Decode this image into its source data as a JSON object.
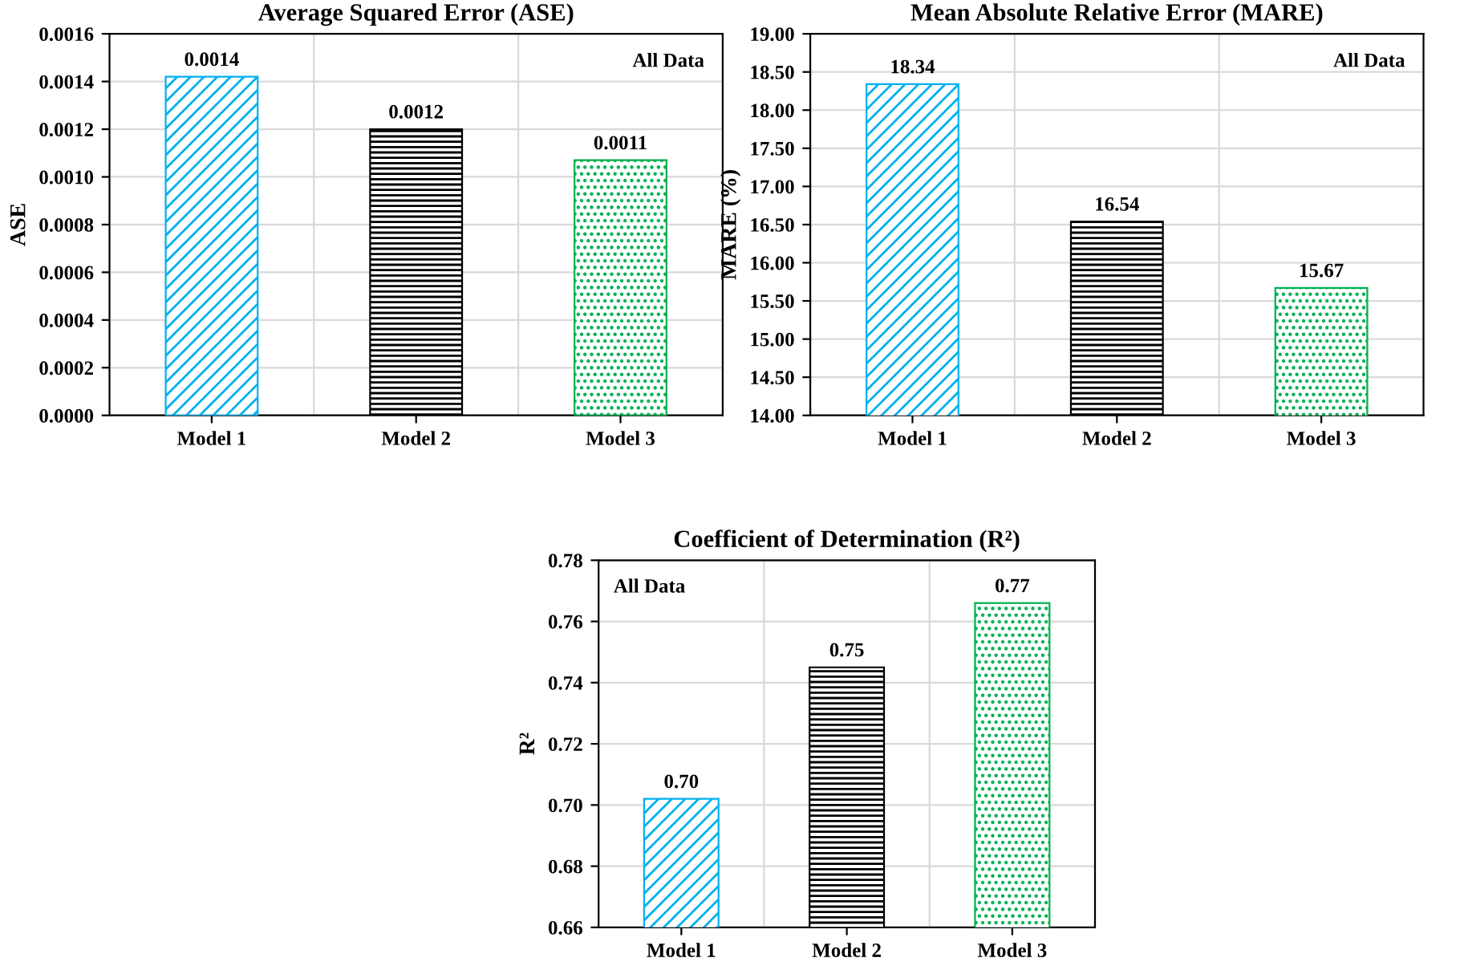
{
  "chart_data": [
    {
      "type": "bar",
      "title": "Average Squared Error (ASE)",
      "ylabel": "ASE",
      "categories": [
        "Model 1",
        "Model 2",
        "Model 3"
      ],
      "values": [
        0.00142,
        0.0012,
        0.00107
      ],
      "colors": [
        "#00b0f0",
        "#000000",
        "#00b050"
      ],
      "value_labels": [
        "0.0014",
        "0.0012",
        "0.0011"
      ],
      "ylim": [
        0,
        0.0016
      ],
      "yticks": [
        {
          "value": 0,
          "label": "0.0000"
        },
        {
          "value": 0.0002,
          "label": "0.0002"
        },
        {
          "value": 0.0004,
          "label": "0.0004"
        },
        {
          "value": 0.0006,
          "label": "0.0006"
        },
        {
          "value": 0.0008,
          "label": "0.0008"
        },
        {
          "value": 0.001,
          "label": "0.0010"
        },
        {
          "value": 0.0012,
          "label": "0.0012"
        },
        {
          "value": 0.0014,
          "label": "0.0014"
        },
        {
          "value": 0.0016,
          "label": "0.0016"
        }
      ],
      "grid": true,
      "annotations": [
        "All Data"
      ]
    },
    {
      "type": "bar",
      "title": "Mean Absolute Relative Error (MARE)",
      "ylabel": "MARE (%)",
      "categories": [
        "Model 1",
        "Model 2",
        "Model 3"
      ],
      "values": [
        18.34,
        16.54,
        15.67
      ],
      "colors": [
        "#00b0f0",
        "#000000",
        "#00b050"
      ],
      "data_labels": true,
      "ylim": [
        14,
        19
      ],
      "yticks": [
        {
          "value": 14,
          "label": "14.00"
        },
        {
          "value": 14.5,
          "label": "14.50"
        },
        {
          "value": 15,
          "label": "15.00"
        },
        {
          "value": 15.5,
          "label": "15.50"
        },
        {
          "value": 16,
          "label": "16.00"
        },
        {
          "value": 16.5,
          "label": "16.50"
        },
        {
          "value": 17,
          "label": "17.00"
        },
        {
          "value": 17.5,
          "label": "17.50"
        },
        {
          "value": 18,
          "label": "18.00"
        },
        {
          "value": 18.5,
          "label": "18.50"
        },
        {
          "value": 19,
          "label": "19.00"
        }
      ],
      "grid": true,
      "annotations": [
        "All Data"
      ]
    },
    {
      "type": "bar",
      "title": "Coefficient of Determination (R²)",
      "ylabel": "R²",
      "categories": [
        "Model 1",
        "Model 2",
        "Model 3"
      ],
      "values": [
        0.702,
        0.745,
        0.766
      ],
      "colors": [
        "#00b0f0",
        "#000000",
        "#00b050"
      ],
      "value_labels": [
        "0.70",
        "0.75",
        "0.77"
      ],
      "ylim": [
        0.66,
        0.78
      ],
      "yticks": [
        {
          "value": 0.66,
          "label": "0.66"
        },
        {
          "value": 0.68,
          "label": "0.68"
        },
        {
          "value": 0.7,
          "label": "0.70"
        },
        {
          "value": 0.72,
          "label": "0.72"
        },
        {
          "value": 0.74,
          "label": "0.74"
        },
        {
          "value": 0.76,
          "label": "0.76"
        },
        {
          "value": 0.78,
          "label": "0.78"
        }
      ],
      "grid": true,
      "annotations": [
        "All Data"
      ]
    }
  ]
}
